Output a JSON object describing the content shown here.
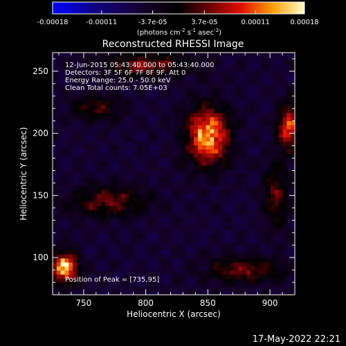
{
  "chart_data": {
    "type": "heatmap",
    "title": "Reconstructed RHESSI Image",
    "xlabel": "Heliocentric X (arcsec)",
    "ylabel": "Heliocentric Y (arcsec)",
    "xlim": [
      725,
      920
    ],
    "ylim": [
      70,
      265
    ],
    "x_ticks": [
      750,
      800,
      850,
      900
    ],
    "y_ticks": [
      100,
      150,
      200,
      250
    ],
    "colorbar": {
      "ticks": [
        "-0.00018",
        "-0.00011",
        "-3.7e-05",
        "3.7e-05",
        "0.00011",
        "0.00018"
      ],
      "tick_values": [
        -0.00018,
        -0.00011,
        -3.7e-05,
        3.7e-05,
        0.00011,
        0.00018
      ],
      "range": [
        -0.00018,
        0.00018
      ],
      "units_main": "(photons cm",
      "units_sup1": "-2",
      "units_mid": " s",
      "units_sup2": "-1",
      "units_end": " asec",
      "units_sup3": "-2",
      "units_close": ")"
    },
    "info_lines": [
      "12-Jun-2015 05:43:40.000 to 05:43:40.000",
      "Detectors: 3F 5F 6F 7F 8F 9F, Att 0",
      "Energy Range: 25.0 - 50.0 keV",
      "Clean    Total counts: 7.05E+03"
    ],
    "peak_label": "Position of Peak = [735,95]",
    "peak": [
      735,
      95
    ],
    "sources": [
      {
        "x": 850,
        "y": 198,
        "sx": 16,
        "sy": 22,
        "amp": 1.0
      },
      {
        "x": 735,
        "y": 92,
        "sx": 10,
        "sy": 12,
        "amp": 1.05
      },
      {
        "x": 915,
        "y": 205,
        "sx": 8,
        "sy": 18,
        "amp": 0.75
      },
      {
        "x": 770,
        "y": 145,
        "sx": 30,
        "sy": 12,
        "amp": 0.45
      },
      {
        "x": 800,
        "y": 255,
        "sx": 35,
        "sy": 10,
        "amp": 0.45
      },
      {
        "x": 880,
        "y": 90,
        "sx": 30,
        "sy": 10,
        "amp": 0.45
      },
      {
        "x": 760,
        "y": 220,
        "sx": 20,
        "sy": 10,
        "amp": 0.35
      },
      {
        "x": 905,
        "y": 150,
        "sx": 10,
        "sy": 25,
        "amp": 0.4
      }
    ],
    "grid": false,
    "legend": "none"
  },
  "timestamp": "17-May-2022 22:21",
  "colors": {
    "background": "#000000",
    "axis": "#ffffff"
  }
}
